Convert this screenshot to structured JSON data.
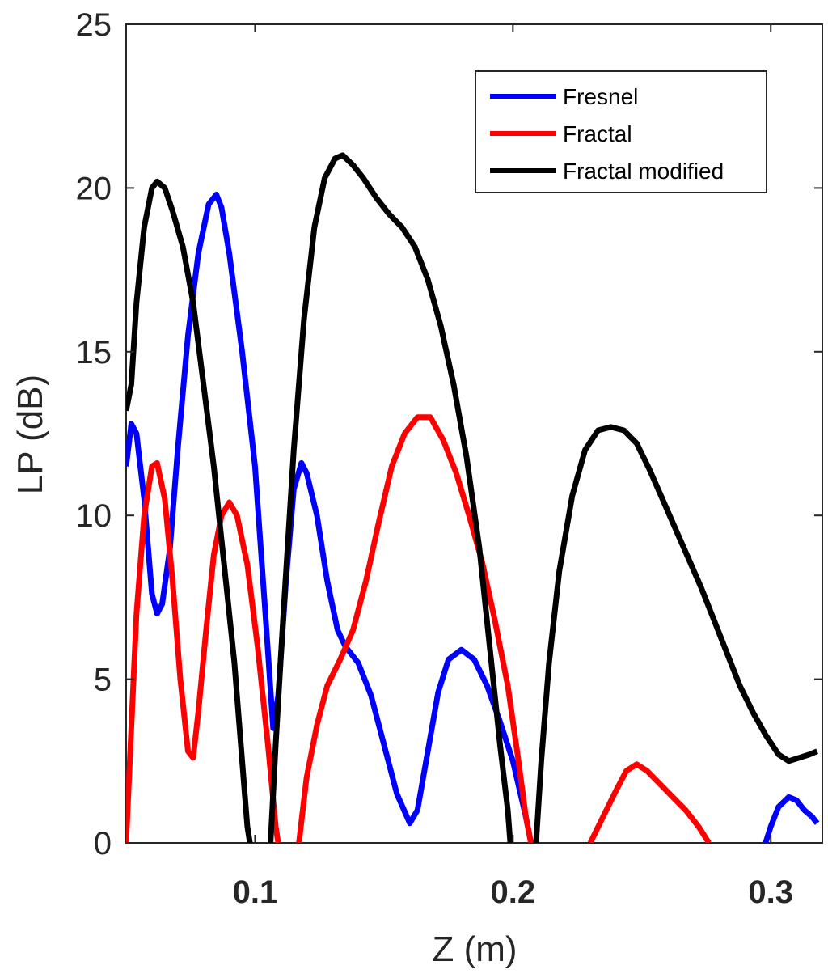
{
  "chart_data": {
    "type": "line",
    "title": "",
    "xlabel": "Z (m)",
    "ylabel": "LP (dB)",
    "xlim": [
      0.05,
      0.32
    ],
    "ylim": [
      0,
      25
    ],
    "xticks": [
      0.1,
      0.2,
      0.3
    ],
    "xtick_labels": [
      "0.1",
      "0.2",
      "0.3"
    ],
    "yticks": [
      0,
      5,
      10,
      15,
      20,
      25
    ],
    "ytick_labels": [
      "0",
      "5",
      "10",
      "15",
      "20",
      "25"
    ],
    "grid": false,
    "legend_position": "top-right",
    "series": [
      {
        "name": "Fresnel",
        "color": "#0000ff",
        "points": [
          [
            0.05,
            11.5
          ],
          [
            0.052,
            12.8
          ],
          [
            0.054,
            12.5
          ],
          [
            0.057,
            10.5
          ],
          [
            0.06,
            7.6
          ],
          [
            0.062,
            7.0
          ],
          [
            0.064,
            7.3
          ],
          [
            0.067,
            9.0
          ],
          [
            0.07,
            12.0
          ],
          [
            0.074,
            15.5
          ],
          [
            0.078,
            18.0
          ],
          [
            0.082,
            19.5
          ],
          [
            0.085,
            19.8
          ],
          [
            0.087,
            19.4
          ],
          [
            0.09,
            18.0
          ],
          [
            0.095,
            15.0
          ],
          [
            0.1,
            11.5
          ],
          [
            0.104,
            7.0
          ],
          [
            0.107,
            3.5
          ],
          [
            0.109,
            4.5
          ],
          [
            0.112,
            8.0
          ],
          [
            0.115,
            10.8
          ],
          [
            0.118,
            11.6
          ],
          [
            0.12,
            11.3
          ],
          [
            0.124,
            10.0
          ],
          [
            0.128,
            8.0
          ],
          [
            0.132,
            6.5
          ],
          [
            0.135,
            6.0
          ],
          [
            0.14,
            5.5
          ],
          [
            0.145,
            4.5
          ],
          [
            0.15,
            3.0
          ],
          [
            0.155,
            1.5
          ],
          [
            0.16,
            0.6
          ],
          [
            0.163,
            1.0
          ],
          [
            0.167,
            2.8
          ],
          [
            0.171,
            4.6
          ],
          [
            0.175,
            5.6
          ],
          [
            0.18,
            5.9
          ],
          [
            0.185,
            5.6
          ],
          [
            0.19,
            4.8
          ],
          [
            0.195,
            3.7
          ],
          [
            0.2,
            2.5
          ],
          [
            0.205,
            0.8
          ],
          [
            0.207,
            0.0
          ]
        ]
      },
      {
        "name": "Fresnel",
        "color": "#0000ff",
        "points": [
          [
            0.298,
            0.0
          ],
          [
            0.3,
            0.5
          ],
          [
            0.303,
            1.1
          ],
          [
            0.307,
            1.4
          ],
          [
            0.31,
            1.3
          ],
          [
            0.313,
            1.0
          ],
          [
            0.316,
            0.8
          ],
          [
            0.318,
            0.6
          ]
        ]
      },
      {
        "name": "Fractal",
        "color": "#ff0000",
        "points": [
          [
            0.05,
            0.0
          ],
          [
            0.052,
            3.5
          ],
          [
            0.054,
            7.0
          ],
          [
            0.057,
            10.0
          ],
          [
            0.06,
            11.5
          ],
          [
            0.062,
            11.6
          ],
          [
            0.065,
            10.5
          ],
          [
            0.068,
            8.0
          ],
          [
            0.071,
            5.0
          ],
          [
            0.074,
            2.8
          ],
          [
            0.076,
            2.6
          ],
          [
            0.078,
            4.0
          ],
          [
            0.081,
            6.5
          ],
          [
            0.084,
            8.8
          ],
          [
            0.087,
            10.0
          ],
          [
            0.09,
            10.4
          ],
          [
            0.093,
            10.0
          ],
          [
            0.097,
            8.5
          ],
          [
            0.101,
            6.0
          ],
          [
            0.105,
            3.0
          ],
          [
            0.108,
            0.5
          ],
          [
            0.109,
            0.0
          ]
        ]
      },
      {
        "name": "Fractal",
        "color": "#ff0000",
        "points": [
          [
            0.117,
            0.0
          ],
          [
            0.12,
            2.0
          ],
          [
            0.124,
            3.6
          ],
          [
            0.128,
            4.8
          ],
          [
            0.133,
            5.6
          ],
          [
            0.138,
            6.5
          ],
          [
            0.143,
            8.0
          ],
          [
            0.148,
            9.8
          ],
          [
            0.153,
            11.5
          ],
          [
            0.158,
            12.5
          ],
          [
            0.163,
            13.0
          ],
          [
            0.168,
            13.0
          ],
          [
            0.173,
            12.3
          ],
          [
            0.178,
            11.3
          ],
          [
            0.183,
            10.0
          ],
          [
            0.188,
            8.6
          ],
          [
            0.193,
            6.8
          ],
          [
            0.198,
            4.8
          ],
          [
            0.202,
            2.6
          ],
          [
            0.205,
            0.8
          ],
          [
            0.207,
            0.0
          ]
        ]
      },
      {
        "name": "Fractal",
        "color": "#ff0000",
        "points": [
          [
            0.23,
            0.0
          ],
          [
            0.235,
            0.8
          ],
          [
            0.24,
            1.6
          ],
          [
            0.244,
            2.2
          ],
          [
            0.248,
            2.4
          ],
          [
            0.252,
            2.2
          ],
          [
            0.257,
            1.8
          ],
          [
            0.262,
            1.4
          ],
          [
            0.267,
            1.0
          ],
          [
            0.272,
            0.5
          ],
          [
            0.276,
            0.0
          ]
        ]
      },
      {
        "name": "Fractal modified",
        "color": "#000000",
        "points": [
          [
            0.05,
            13.2
          ],
          [
            0.052,
            14.0
          ],
          [
            0.054,
            16.5
          ],
          [
            0.057,
            18.8
          ],
          [
            0.06,
            20.0
          ],
          [
            0.062,
            20.2
          ],
          [
            0.065,
            20.0
          ],
          [
            0.068,
            19.3
          ],
          [
            0.072,
            18.2
          ],
          [
            0.076,
            16.5
          ],
          [
            0.08,
            14.0
          ],
          [
            0.084,
            11.5
          ],
          [
            0.088,
            8.5
          ],
          [
            0.092,
            5.5
          ],
          [
            0.095,
            2.5
          ],
          [
            0.097,
            0.5
          ],
          [
            0.098,
            0.0
          ]
        ]
      },
      {
        "name": "Fractal modified",
        "color": "#000000",
        "points": [
          [
            0.106,
            0.0
          ],
          [
            0.108,
            3.0
          ],
          [
            0.111,
            7.0
          ],
          [
            0.115,
            12.0
          ],
          [
            0.119,
            16.0
          ],
          [
            0.123,
            18.8
          ],
          [
            0.127,
            20.3
          ],
          [
            0.131,
            20.9
          ],
          [
            0.134,
            21.0
          ],
          [
            0.138,
            20.7
          ],
          [
            0.142,
            20.3
          ],
          [
            0.147,
            19.7
          ],
          [
            0.152,
            19.2
          ],
          [
            0.157,
            18.8
          ],
          [
            0.162,
            18.2
          ],
          [
            0.167,
            17.2
          ],
          [
            0.172,
            15.8
          ],
          [
            0.177,
            14.0
          ],
          [
            0.182,
            11.8
          ],
          [
            0.187,
            9.0
          ],
          [
            0.191,
            6.0
          ],
          [
            0.195,
            3.0
          ],
          [
            0.198,
            1.0
          ],
          [
            0.199,
            0.0
          ]
        ]
      },
      {
        "name": "Fractal modified",
        "color": "#000000",
        "points": [
          [
            0.209,
            0.0
          ],
          [
            0.211,
            2.5
          ],
          [
            0.214,
            5.5
          ],
          [
            0.218,
            8.3
          ],
          [
            0.223,
            10.6
          ],
          [
            0.228,
            12.0
          ],
          [
            0.233,
            12.6
          ],
          [
            0.238,
            12.7
          ],
          [
            0.243,
            12.6
          ],
          [
            0.248,
            12.2
          ],
          [
            0.253,
            11.4
          ],
          [
            0.258,
            10.5
          ],
          [
            0.263,
            9.6
          ],
          [
            0.268,
            8.7
          ],
          [
            0.273,
            7.8
          ],
          [
            0.278,
            6.8
          ],
          [
            0.283,
            5.8
          ],
          [
            0.288,
            4.8
          ],
          [
            0.293,
            4.0
          ],
          [
            0.298,
            3.3
          ],
          [
            0.303,
            2.7
          ],
          [
            0.307,
            2.5
          ],
          [
            0.311,
            2.6
          ],
          [
            0.315,
            2.7
          ],
          [
            0.318,
            2.8
          ]
        ]
      }
    ],
    "legend": [
      {
        "name": "Fresnel",
        "color": "#0000ff"
      },
      {
        "name": "Fractal",
        "color": "#ff0000"
      },
      {
        "name": "Fractal modified",
        "color": "#000000"
      }
    ]
  }
}
